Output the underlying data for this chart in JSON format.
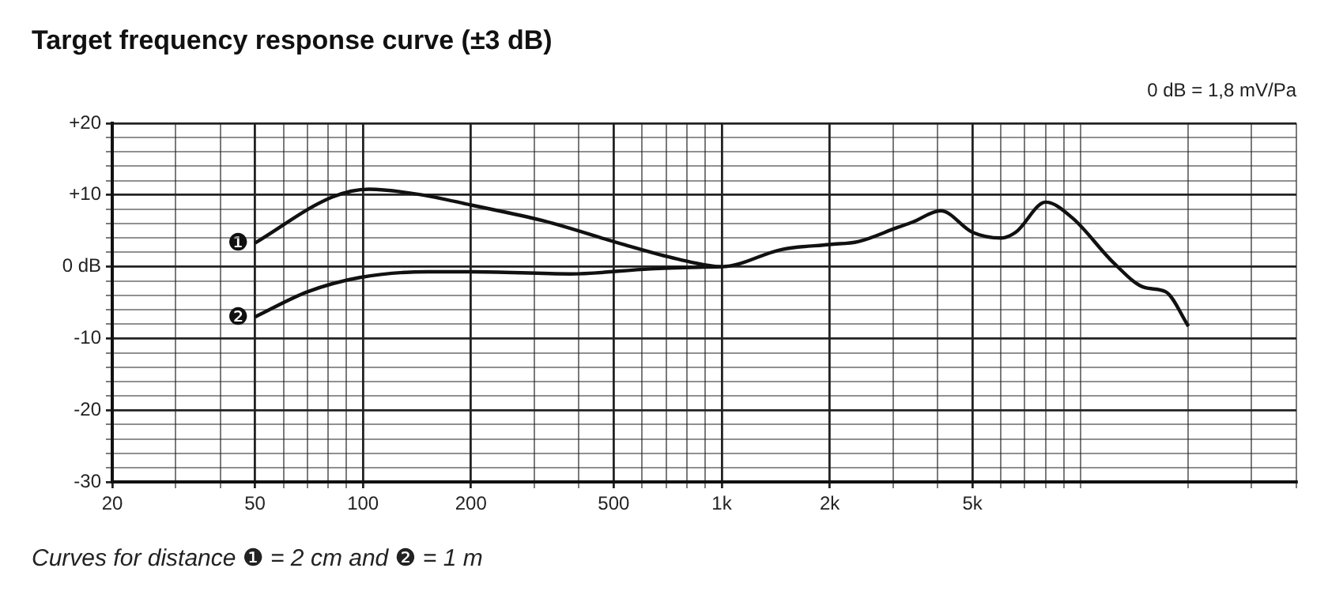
{
  "chart_data": {
    "type": "line",
    "title": "Target frequency response curve (±3 dB)",
    "annotations": [
      "0 dB = 1,8 mV/Pa",
      "Curves for distance ❶ = 2 cm and ❷ = 1 m"
    ],
    "xlim": [
      20,
      40000
    ],
    "xticks": [
      20,
      {
        "value": 30,
        "label": null
      },
      {
        "value": 40,
        "label": null
      },
      50,
      {
        "value": 60,
        "label": null
      },
      {
        "value": 70,
        "label": null
      },
      {
        "value": 80,
        "label": null
      },
      {
        "value": 90,
        "label": null
      },
      100,
      200,
      {
        "value": 300,
        "label": null
      },
      {
        "value": 400,
        "label": null
      },
      500,
      {
        "value": 600,
        "label": null
      },
      {
        "value": 700,
        "label": null
      },
      {
        "value": 800,
        "label": null
      },
      {
        "value": 900,
        "label": null
      },
      {
        "value": 1000,
        "label": "1k"
      },
      {
        "value": 2000,
        "label": "2k"
      },
      {
        "value": 3000,
        "label": null
      },
      {
        "value": 4000,
        "label": null
      },
      {
        "value": 5000,
        "label": "5k"
      },
      {
        "value": 6000,
        "label": null
      },
      {
        "value": 7000,
        "label": null
      },
      {
        "value": 8000,
        "label": null
      },
      {
        "value": 9000,
        "label": null
      },
      {
        "value": 10000,
        "label": null
      },
      {
        "value": 20000,
        "label": null
      },
      {
        "value": 30000,
        "label": null
      },
      {
        "value": 40000,
        "label": null
      }
    ],
    "ylim": [
      -30,
      20
    ],
    "yticks": [
      -30,
      {
        "value": -28,
        "label": null
      },
      {
        "value": -26,
        "label": null
      },
      {
        "value": -24,
        "label": null
      },
      {
        "value": -22,
        "label": null
      },
      -20,
      {
        "value": -18,
        "label": null
      },
      {
        "value": -16,
        "label": null
      },
      {
        "value": -14,
        "label": null
      },
      {
        "value": -12,
        "label": null
      },
      -10,
      {
        "value": -8,
        "label": null
      },
      {
        "value": -6,
        "label": null
      },
      {
        "value": -4,
        "label": null
      },
      {
        "value": -2,
        "label": null
      },
      {
        "value": 0,
        "label": "0 dB"
      },
      {
        "value": 2,
        "label": null
      },
      {
        "value": 4,
        "label": null
      },
      {
        "value": 6,
        "label": null
      },
      {
        "value": 8,
        "label": null
      },
      {
        "value": 10,
        "label": "+10"
      },
      {
        "value": 12,
        "label": null
      },
      {
        "value": 14,
        "label": null
      },
      {
        "value": 16,
        "label": null
      },
      {
        "value": 18,
        "label": null
      },
      {
        "value": 20,
        "label": "+20"
      }
    ],
    "grid": true,
    "legend": false,
    "marker": "none",
    "line_style": "solid",
    "log": "x",
    "series": [
      {
        "name": "❶",
        "color": "#111111",
        "x": [
          50,
          82,
          104,
          147,
          200,
          318,
          532,
          749,
          1000,
          1470,
          2000,
          2400,
          3100,
          3400,
          4080,
          5000,
          6000,
          6600,
          8000,
          9500,
          12400,
          15100,
          17300,
          20000
        ],
        "values": [
          3.3,
          9.7,
          10.8,
          10.0,
          8.6,
          6.4,
          3.1,
          1.1,
          0,
          2.4,
          3.1,
          3.5,
          5.5,
          6.2,
          7.8,
          4.8,
          4.0,
          4.8,
          9.0,
          6.8,
          0.5,
          -2.9,
          -3.5,
          -8.3
        ]
      },
      {
        "name": "❷",
        "color": "#111111",
        "x": [
          50,
          70,
          98,
          152,
          200,
          378,
          633,
          1000
        ],
        "values": [
          -7.0,
          -3.5,
          -1.5,
          -0.7,
          -0.7,
          -1.0,
          -0.3,
          0
        ]
      }
    ]
  }
}
